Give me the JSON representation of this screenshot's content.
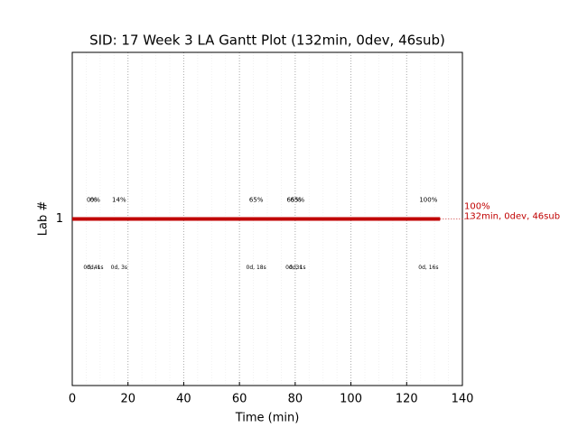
{
  "chart_data": {
    "type": "gantt",
    "title": "SID: 17 Week 3 LA Gantt Plot (132min, 0dev, 46sub)",
    "xlabel": "Time (min)",
    "ylabel": "Lab #",
    "categories": [
      "1"
    ],
    "bar": {
      "start": 0,
      "end": 132
    },
    "color": "#c00000",
    "end_label": [
      "100%",
      "132min, 0dev, 46sub"
    ],
    "events": [
      {
        "x": 7,
        "progress": "0%",
        "duration": "0d, 4s"
      },
      {
        "x": 8.2,
        "progress": "0%",
        "duration": "0d, 1s"
      },
      {
        "x": 16.8,
        "progress": "14%",
        "duration": "0d, 3s"
      },
      {
        "x": 66,
        "progress": "65%",
        "duration": "0d, 18s"
      },
      {
        "x": 79.5,
        "progress": "65%",
        "duration": "0d, 3s"
      },
      {
        "x": 80.8,
        "progress": "65%",
        "duration": "0d, 1s"
      },
      {
        "x": 127.8,
        "progress": "100%",
        "duration": "0d, 16s"
      }
    ],
    "xlim": [
      0,
      140
    ],
    "xticks": [
      0,
      20,
      40,
      60,
      80,
      100,
      120,
      140
    ],
    "minor_xticks": [
      5,
      10,
      15,
      25,
      30,
      35,
      45,
      50,
      55,
      65,
      70,
      75,
      85,
      90,
      95,
      105,
      110,
      115,
      125,
      130,
      135
    ],
    "ylim": [
      0,
      2
    ],
    "yticks": [
      1
    ],
    "grid": true
  }
}
